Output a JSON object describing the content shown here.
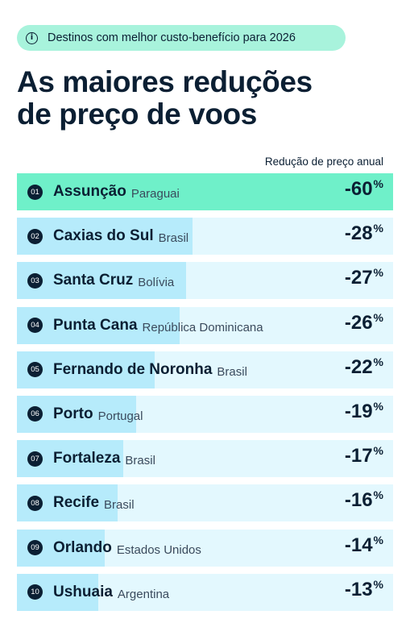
{
  "header": {
    "badge": "Destinos com melhor custo-benefício para 2026",
    "badge_icon": "info-icon",
    "title_line1": "As maiores reduções",
    "title_line2": "de preço de voos",
    "column_label": "Redução de preço anual"
  },
  "colors": {
    "highlight": "#6ff0c9",
    "bar": "#b6ebfb",
    "track": "#e3f8fe",
    "badge_bg": "#a8f3dc",
    "text": "#0b1f33"
  },
  "chart_data": {
    "type": "bar",
    "orientation": "horizontal",
    "xlim": [
      0,
      60
    ],
    "unit": "%",
    "rows": [
      {
        "rank": "01",
        "city": "Assunção",
        "country": "Paraguai",
        "value": -60,
        "label": "-60"
      },
      {
        "rank": "02",
        "city": "Caxias do Sul",
        "country": "Brasil",
        "value": -28,
        "label": "-28"
      },
      {
        "rank": "03",
        "city": "Santa Cruz",
        "country": "Bolívia",
        "value": -27,
        "label": "-27"
      },
      {
        "rank": "04",
        "city": "Punta Cana",
        "country": "República Dominicana",
        "value": -26,
        "label": "-26"
      },
      {
        "rank": "05",
        "city": "Fernando de Noronha",
        "country": "Brasil",
        "value": -22,
        "label": "-22"
      },
      {
        "rank": "06",
        "city": "Porto",
        "country": "Portugal",
        "value": -19,
        "label": "-19"
      },
      {
        "rank": "07",
        "city": "Fortaleza",
        "country": "Brasil",
        "value": -17,
        "label": "-17"
      },
      {
        "rank": "08",
        "city": "Recife",
        "country": "Brasil",
        "value": -16,
        "label": "-16"
      },
      {
        "rank": "09",
        "city": "Orlando",
        "country": "Estados Unidos",
        "value": -14,
        "label": "-14"
      },
      {
        "rank": "10",
        "city": "Ushuaia",
        "country": "Argentina",
        "value": -13,
        "label": "-13"
      }
    ]
  }
}
